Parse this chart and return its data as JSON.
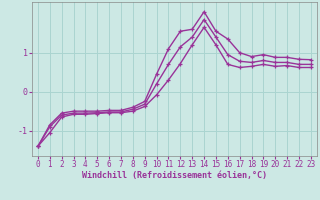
{
  "xlabel": "Windchill (Refroidissement éolien,°C)",
  "background_color": "#cce8e4",
  "grid_color": "#aad4d0",
  "line_color": "#993399",
  "xlim": [
    -0.5,
    23.5
  ],
  "ylim": [
    -1.65,
    2.3
  ],
  "yticks": [
    -1,
    0,
    1
  ],
  "xticks": [
    0,
    1,
    2,
    3,
    4,
    5,
    6,
    7,
    8,
    9,
    10,
    11,
    12,
    13,
    14,
    15,
    16,
    17,
    18,
    19,
    20,
    21,
    22,
    23
  ],
  "line1_x": [
    0,
    1,
    2,
    3,
    4,
    5,
    6,
    7,
    8,
    9,
    10,
    11,
    12,
    13,
    14,
    15,
    16,
    17,
    18,
    19,
    20,
    21,
    22,
    23
  ],
  "line1_y": [
    -1.4,
    -0.85,
    -0.55,
    -0.5,
    -0.5,
    -0.5,
    -0.48,
    -0.48,
    -0.4,
    -0.25,
    0.45,
    1.1,
    1.55,
    1.6,
    2.05,
    1.55,
    1.35,
    1.0,
    0.9,
    0.95,
    0.88,
    0.88,
    0.83,
    0.82
  ],
  "line2_x": [
    0,
    1,
    2,
    3,
    4,
    5,
    6,
    7,
    8,
    9,
    10,
    11,
    12,
    13,
    14,
    15,
    16,
    17,
    18,
    19,
    20,
    21,
    22,
    23
  ],
  "line2_y": [
    -1.4,
    -0.9,
    -0.6,
    -0.55,
    -0.55,
    -0.54,
    -0.52,
    -0.52,
    -0.45,
    -0.32,
    0.2,
    0.7,
    1.15,
    1.4,
    1.85,
    1.4,
    0.95,
    0.78,
    0.75,
    0.8,
    0.75,
    0.75,
    0.7,
    0.7
  ],
  "line3_x": [
    0,
    1,
    2,
    3,
    4,
    5,
    6,
    7,
    8,
    9,
    10,
    11,
    12,
    13,
    14,
    15,
    16,
    17,
    18,
    19,
    20,
    21,
    22,
    23
  ],
  "line3_y": [
    -1.4,
    -1.05,
    -0.65,
    -0.58,
    -0.58,
    -0.56,
    -0.54,
    -0.54,
    -0.5,
    -0.38,
    -0.08,
    0.3,
    0.72,
    1.2,
    1.65,
    1.2,
    0.7,
    0.62,
    0.65,
    0.7,
    0.65,
    0.67,
    0.62,
    0.62
  ],
  "marker": "+",
  "markersize": 3.5,
  "linewidth": 1.0,
  "tick_fontsize": 5.5,
  "xlabel_fontsize": 6.0
}
